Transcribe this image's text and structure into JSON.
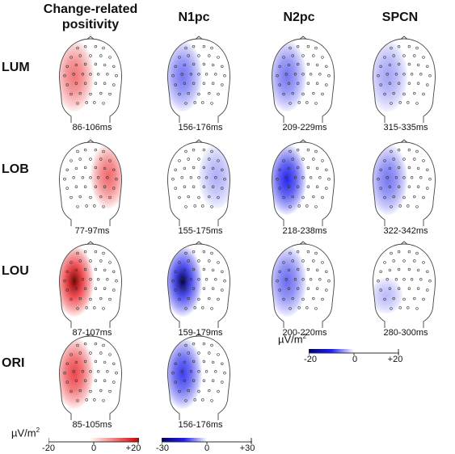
{
  "columns": [
    "Change-related positivity",
    "N1pc",
    "N2pc",
    "SPCN"
  ],
  "rows": [
    "LUM",
    "LOB",
    "LOU",
    "ORI"
  ],
  "maps": [
    [
      {
        "time": "86-106ms",
        "pol": "pos",
        "side": "left",
        "strength": 0.55
      },
      {
        "time": "156-176ms",
        "pol": "neg",
        "side": "left",
        "strength": 0.55
      },
      {
        "time": "209-229ms",
        "pol": "neg",
        "side": "left",
        "strength": 0.55
      },
      {
        "time": "315-335ms",
        "pol": "neg",
        "side": "left",
        "strength": 0.35
      }
    ],
    [
      {
        "time": "77-97ms",
        "pol": "pos",
        "side": "right",
        "strength": 0.6
      },
      {
        "time": "155-175ms",
        "pol": "neg",
        "side": "right",
        "strength": 0.3
      },
      {
        "time": "218-238ms",
        "pol": "neg",
        "side": "left",
        "strength": 0.9
      },
      {
        "time": "322-342ms",
        "pol": "neg",
        "side": "left",
        "strength": 0.55
      }
    ],
    [
      {
        "time": "87-107ms",
        "pol": "pos",
        "side": "left",
        "strength": 1.0
      },
      {
        "time": "159-179ms",
        "pol": "neg",
        "side": "left",
        "strength": 1.0
      },
      {
        "time": "200-220ms",
        "pol": "neg",
        "side": "left",
        "strength": 0.6
      },
      {
        "time": "280-300ms",
        "pol": "neg",
        "side": "left-low",
        "strength": 0.25
      }
    ],
    [
      {
        "time": "85-105ms",
        "pol": "pos",
        "side": "left",
        "strength": 0.75
      },
      {
        "time": "156-176ms",
        "pol": "neg",
        "side": "left",
        "strength": 0.8
      },
      null,
      null
    ]
  ],
  "colorbars": [
    {
      "unit_base": "µV/m",
      "unit_exp": "2",
      "ticks": [
        "-20",
        "0",
        "+20"
      ],
      "gradient": "blue-white-red"
    },
    {
      "unit_base": "",
      "unit_exp": "",
      "ticks": [
        "-30",
        "0",
        "+30"
      ],
      "gradient": "blue-white"
    },
    {
      "unit_base": "µV/m",
      "unit_exp": "2",
      "ticks": [
        "-20",
        "0",
        "+20"
      ],
      "gradient": "blue-white"
    }
  ],
  "colors": {
    "positive": "#e8161b",
    "negative": "#1a1aeb",
    "outline": "#444444"
  }
}
